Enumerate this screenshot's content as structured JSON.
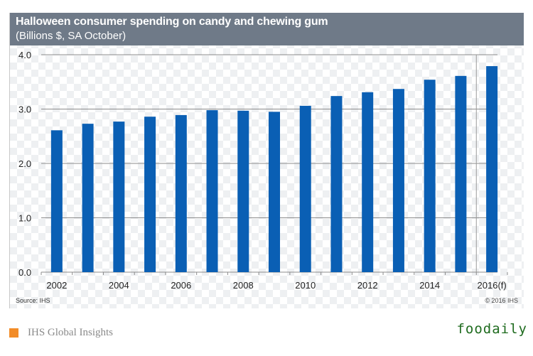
{
  "chart_data": {
    "type": "bar",
    "title": "Halloween consumer spending on candy and chewing gum",
    "subtitle": "(Billions $, SA October)",
    "xlabel": "",
    "ylabel": "",
    "ylim": [
      0,
      4
    ],
    "yticks": [
      "0.0",
      "1.0",
      "2.0",
      "3.0",
      "4.0"
    ],
    "ytick_values": [
      0,
      1,
      2,
      3,
      4
    ],
    "categories": [
      "2002",
      "2003",
      "2004",
      "2005",
      "2006",
      "2007",
      "2008",
      "2009",
      "2010",
      "2011",
      "2012",
      "2013",
      "2014",
      "2015",
      "2016(f)"
    ],
    "xtick_labels": [
      "2002",
      "",
      "2004",
      "",
      "2006",
      "",
      "2008",
      "",
      "2010",
      "",
      "2012",
      "",
      "2014",
      "",
      "2016(f)"
    ],
    "values": [
      2.61,
      2.73,
      2.77,
      2.86,
      2.89,
      2.98,
      2.97,
      2.95,
      3.06,
      3.24,
      3.31,
      3.37,
      3.54,
      3.61,
      3.79
    ],
    "grid": true,
    "forecast_divider_after": "2015",
    "bar_color": "#0a5fb4",
    "legend": null
  },
  "footer": {
    "source": "Source: IHS",
    "copyright": "© 2016 IHS"
  },
  "brand": {
    "name": "IHS Global Insights",
    "accent_color": "#f28c28"
  },
  "watermark": "foodaily"
}
